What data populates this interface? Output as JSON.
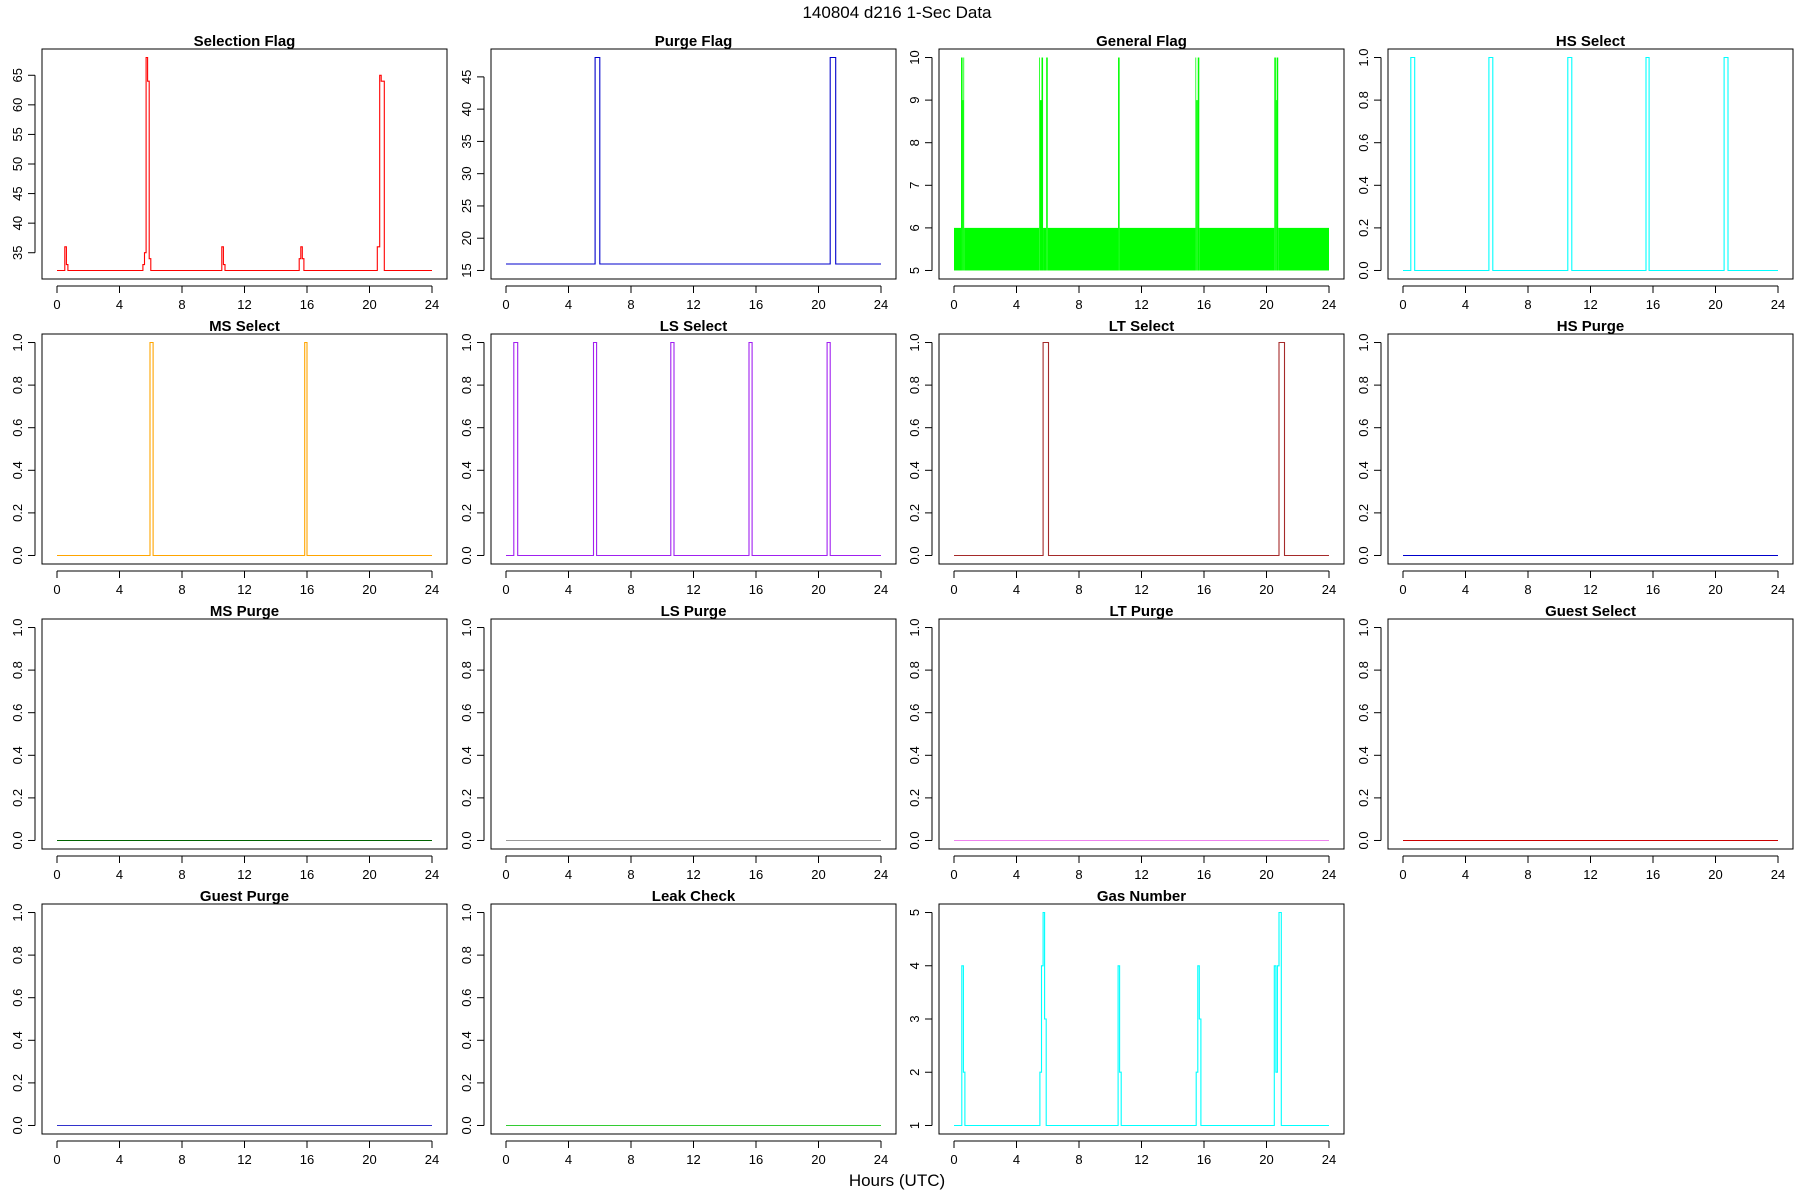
{
  "figure": {
    "suptitle": "140804   d216   1-Sec Data",
    "xlabel": "Hours (UTC)"
  },
  "chart_data": [
    {
      "type": "line",
      "title": "Selection Flag",
      "color": "#ff0000",
      "xlim": [
        0,
        24
      ],
      "xticks": [
        0,
        4,
        8,
        12,
        16,
        20,
        24
      ],
      "ylim": [
        32,
        68
      ],
      "yticks": [
        35,
        40,
        45,
        50,
        55,
        60,
        65
      ],
      "x": [
        0,
        0.45,
        0.5,
        0.55,
        0.6,
        0.65,
        0.7,
        0.75,
        0.8,
        5.45,
        5.5,
        5.55,
        5.6,
        5.65,
        5.7,
        5.75,
        5.8,
        5.85,
        5.9,
        5.95,
        6.0,
        6.05,
        6.1,
        10.5,
        10.55,
        10.6,
        10.65,
        10.7,
        10.75,
        10.8,
        15.45,
        15.5,
        15.55,
        15.6,
        15.65,
        15.7,
        15.75,
        15.8,
        15.85,
        20.45,
        20.5,
        20.55,
        20.6,
        20.65,
        20.7,
        20.75,
        20.8,
        20.85,
        20.9,
        20.95,
        21.0,
        21.05,
        24
      ],
      "y": [
        32,
        32,
        36,
        36,
        33,
        33,
        32,
        32,
        32,
        32,
        33,
        33,
        35,
        35,
        68,
        68,
        64,
        64,
        34,
        34,
        32,
        32,
        32,
        32,
        36,
        36,
        33,
        33,
        32,
        32,
        32,
        34,
        34,
        36,
        36,
        34,
        34,
        32,
        32,
        32,
        36,
        36,
        36,
        65,
        65,
        64,
        64,
        64,
        64,
        32,
        32,
        32,
        32
      ]
    },
    {
      "type": "line",
      "title": "Purge Flag",
      "color": "#0000cc",
      "xlim": [
        0,
        24
      ],
      "xticks": [
        0,
        4,
        8,
        12,
        16,
        20,
        24
      ],
      "ylim": [
        15,
        48
      ],
      "yticks": [
        15,
        20,
        25,
        30,
        35,
        40,
        45
      ],
      "x": [
        0,
        5.65,
        5.7,
        5.95,
        6.0,
        20.7,
        20.75,
        21.05,
        21.1,
        24
      ],
      "y": [
        16,
        16,
        48,
        48,
        16,
        16,
        48,
        48,
        16,
        16
      ]
    },
    {
      "type": "area",
      "title": "General Flag",
      "color": "#00ff00",
      "xlim": [
        0,
        24
      ],
      "xticks": [
        0,
        4,
        8,
        12,
        16,
        20,
        24
      ],
      "ylim": [
        5,
        10
      ],
      "yticks": [
        5,
        6,
        7,
        8,
        9,
        10
      ],
      "blocks": [
        {
          "x0": 0.0,
          "x1": 0.45,
          "y0": 5,
          "y1": 6
        },
        {
          "x0": 0.45,
          "x1": 0.55,
          "y0": 5,
          "y1": 10
        },
        {
          "x0": 0.55,
          "x1": 0.6,
          "y0": 5,
          "y1": 9
        },
        {
          "x0": 0.6,
          "x1": 0.65,
          "y0": 5,
          "y1": 10
        },
        {
          "x0": 0.65,
          "x1": 5.45,
          "y0": 5,
          "y1": 6
        },
        {
          "x0": 5.45,
          "x1": 5.5,
          "y0": 5,
          "y1": 10
        },
        {
          "x0": 5.5,
          "x1": 5.6,
          "y0": 5,
          "y1": 9
        },
        {
          "x0": 5.6,
          "x1": 5.7,
          "y0": 5,
          "y1": 10
        },
        {
          "x0": 5.7,
          "x1": 5.9,
          "y0": 5,
          "y1": 6
        },
        {
          "x0": 5.9,
          "x1": 6.0,
          "y0": 5,
          "y1": 10
        },
        {
          "x0": 6.0,
          "x1": 10.5,
          "y0": 5,
          "y1": 6
        },
        {
          "x0": 10.5,
          "x1": 10.6,
          "y0": 5,
          "y1": 10
        },
        {
          "x0": 10.6,
          "x1": 15.45,
          "y0": 5,
          "y1": 6
        },
        {
          "x0": 15.45,
          "x1": 15.5,
          "y0": 5,
          "y1": 10
        },
        {
          "x0": 15.5,
          "x1": 15.6,
          "y0": 5,
          "y1": 9
        },
        {
          "x0": 15.6,
          "x1": 15.7,
          "y0": 5,
          "y1": 10
        },
        {
          "x0": 15.7,
          "x1": 20.5,
          "y0": 5,
          "y1": 6
        },
        {
          "x0": 20.5,
          "x1": 20.6,
          "y0": 5,
          "y1": 10
        },
        {
          "x0": 20.6,
          "x1": 20.65,
          "y0": 5,
          "y1": 9
        },
        {
          "x0": 20.65,
          "x1": 20.75,
          "y0": 5,
          "y1": 10
        },
        {
          "x0": 20.75,
          "x1": 24.0,
          "y0": 5,
          "y1": 6
        }
      ]
    },
    {
      "type": "line",
      "title": "HS Select",
      "color": "#00ffff",
      "xlim": [
        0,
        24
      ],
      "xticks": [
        0,
        4,
        8,
        12,
        16,
        20,
        24
      ],
      "ylim": [
        0,
        1
      ],
      "yticks": [
        0.0,
        0.2,
        0.4,
        0.6,
        0.8,
        1.0
      ],
      "x": [
        0,
        0.45,
        0.5,
        0.7,
        0.75,
        5.45,
        5.5,
        5.7,
        5.75,
        10.5,
        10.55,
        10.75,
        10.8,
        15.5,
        15.55,
        15.7,
        15.75,
        20.5,
        20.55,
        20.75,
        20.8,
        24
      ],
      "y": [
        0,
        0,
        1,
        1,
        0,
        0,
        1,
        1,
        0,
        0,
        1,
        1,
        0,
        0,
        1,
        1,
        0,
        0,
        1,
        1,
        0,
        0
      ]
    },
    {
      "type": "line",
      "title": "MS Select",
      "color": "#ffa500",
      "xlim": [
        0,
        24
      ],
      "xticks": [
        0,
        4,
        8,
        12,
        16,
        20,
        24
      ],
      "ylim": [
        0,
        1
      ],
      "yticks": [
        0.0,
        0.2,
        0.4,
        0.6,
        0.8,
        1.0
      ],
      "x": [
        0,
        5.9,
        5.95,
        6.1,
        6.15,
        15.8,
        15.85,
        15.95,
        16.0,
        24
      ],
      "y": [
        0,
        0,
        1,
        1,
        0,
        0,
        1,
        1,
        0,
        0
      ]
    },
    {
      "type": "line",
      "title": "LS Select",
      "color": "#a020f0",
      "xlim": [
        0,
        24
      ],
      "xticks": [
        0,
        4,
        8,
        12,
        16,
        20,
        24
      ],
      "ylim": [
        0,
        1
      ],
      "yticks": [
        0.0,
        0.2,
        0.4,
        0.6,
        0.8,
        1.0
      ],
      "x": [
        0,
        0.45,
        0.5,
        0.7,
        0.75,
        5.55,
        5.6,
        5.75,
        5.8,
        10.5,
        10.55,
        10.7,
        10.75,
        15.5,
        15.55,
        15.7,
        15.75,
        20.5,
        20.55,
        20.7,
        20.75,
        24
      ],
      "y": [
        0,
        0,
        1,
        1,
        0,
        0,
        1,
        1,
        0,
        0,
        1,
        1,
        0,
        0,
        1,
        1,
        0,
        0,
        1,
        1,
        0,
        0
      ]
    },
    {
      "type": "line",
      "title": "LT Select",
      "color": "#a52a2a",
      "xlim": [
        0,
        24
      ],
      "xticks": [
        0,
        4,
        8,
        12,
        16,
        20,
        24
      ],
      "ylim": [
        0,
        1
      ],
      "yticks": [
        0.0,
        0.2,
        0.4,
        0.6,
        0.8,
        1.0
      ],
      "x": [
        0,
        5.65,
        5.7,
        6.0,
        6.05,
        20.75,
        20.8,
        21.1,
        21.15,
        24
      ],
      "y": [
        0,
        0,
        1,
        1,
        0,
        0,
        1,
        1,
        0,
        0
      ]
    },
    {
      "type": "line",
      "title": "HS Purge",
      "color": "#0000cc",
      "xlim": [
        0,
        24
      ],
      "xticks": [
        0,
        4,
        8,
        12,
        16,
        20,
        24
      ],
      "ylim": [
        0,
        1
      ],
      "yticks": [
        0.0,
        0.2,
        0.4,
        0.6,
        0.8,
        1.0
      ],
      "x": [
        0,
        24
      ],
      "y": [
        0,
        0
      ]
    },
    {
      "type": "line",
      "title": "MS Purge",
      "color": "#006400",
      "xlim": [
        0,
        24
      ],
      "xticks": [
        0,
        4,
        8,
        12,
        16,
        20,
        24
      ],
      "ylim": [
        0,
        1
      ],
      "yticks": [
        0.0,
        0.2,
        0.4,
        0.6,
        0.8,
        1.0
      ],
      "x": [
        0,
        24
      ],
      "y": [
        0,
        0
      ]
    },
    {
      "type": "line",
      "title": "LS Purge",
      "color": "#999999",
      "xlim": [
        0,
        24
      ],
      "xticks": [
        0,
        4,
        8,
        12,
        16,
        20,
        24
      ],
      "ylim": [
        0,
        1
      ],
      "yticks": [
        0.0,
        0.2,
        0.4,
        0.6,
        0.8,
        1.0
      ],
      "x": [
        0,
        24
      ],
      "y": [
        0,
        0
      ]
    },
    {
      "type": "line",
      "title": "LT Purge",
      "color": "#ee82ee",
      "xlim": [
        0,
        24
      ],
      "xticks": [
        0,
        4,
        8,
        12,
        16,
        20,
        24
      ],
      "ylim": [
        0,
        1
      ],
      "yticks": [
        0.0,
        0.2,
        0.4,
        0.6,
        0.8,
        1.0
      ],
      "x": [
        0,
        24
      ],
      "y": [
        0,
        0
      ]
    },
    {
      "type": "line",
      "title": "Guest Select",
      "color": "#cc0000",
      "xlim": [
        0,
        24
      ],
      "xticks": [
        0,
        4,
        8,
        12,
        16,
        20,
        24
      ],
      "ylim": [
        0,
        1
      ],
      "yticks": [
        0.0,
        0.2,
        0.4,
        0.6,
        0.8,
        1.0
      ],
      "x": [
        0,
        24
      ],
      "y": [
        0,
        0
      ]
    },
    {
      "type": "line",
      "title": "Guest Purge",
      "color": "#3333cc",
      "xlim": [
        0,
        24
      ],
      "xticks": [
        0,
        4,
        8,
        12,
        16,
        20,
        24
      ],
      "ylim": [
        0,
        1
      ],
      "yticks": [
        0.0,
        0.2,
        0.4,
        0.6,
        0.8,
        1.0
      ],
      "x": [
        0,
        24
      ],
      "y": [
        0,
        0
      ]
    },
    {
      "type": "line",
      "title": "Leak Check",
      "color": "#33cc33",
      "xlim": [
        0,
        24
      ],
      "xticks": [
        0,
        4,
        8,
        12,
        16,
        20,
        24
      ],
      "ylim": [
        0,
        1
      ],
      "yticks": [
        0.0,
        0.2,
        0.4,
        0.6,
        0.8,
        1.0
      ],
      "x": [
        0,
        24
      ],
      "y": [
        0,
        0
      ]
    },
    {
      "type": "line",
      "title": "Gas Number",
      "color": "#00ffff",
      "xlim": [
        0,
        24
      ],
      "xticks": [
        0,
        4,
        8,
        12,
        16,
        20,
        24
      ],
      "ylim": [
        1,
        5
      ],
      "yticks": [
        1,
        2,
        3,
        4,
        5
      ],
      "x": [
        0,
        0.45,
        0.5,
        0.55,
        0.6,
        0.65,
        0.7,
        0.75,
        0.8,
        5.45,
        5.5,
        5.55,
        5.6,
        5.65,
        5.7,
        5.75,
        5.8,
        5.85,
        5.9,
        5.95,
        6.0,
        10.45,
        10.5,
        10.55,
        10.6,
        10.65,
        10.7,
        10.75,
        15.45,
        15.5,
        15.55,
        15.6,
        15.65,
        15.7,
        15.75,
        15.8,
        15.85,
        20.45,
        20.5,
        20.55,
        20.6,
        20.65,
        20.7,
        20.75,
        20.8,
        20.85,
        20.9,
        20.95,
        21.0,
        21.05,
        24
      ],
      "y": [
        1,
        1,
        4,
        4,
        2,
        2,
        1,
        1,
        1,
        1,
        2,
        2,
        4,
        4,
        5,
        5,
        3,
        3,
        1,
        1,
        1,
        1,
        4,
        4,
        2,
        2,
        1,
        1,
        1,
        2,
        2,
        4,
        4,
        3,
        3,
        1,
        1,
        1,
        4,
        4,
        2,
        2,
        4,
        4,
        5,
        5,
        5,
        1,
        1,
        1,
        1
      ]
    }
  ]
}
